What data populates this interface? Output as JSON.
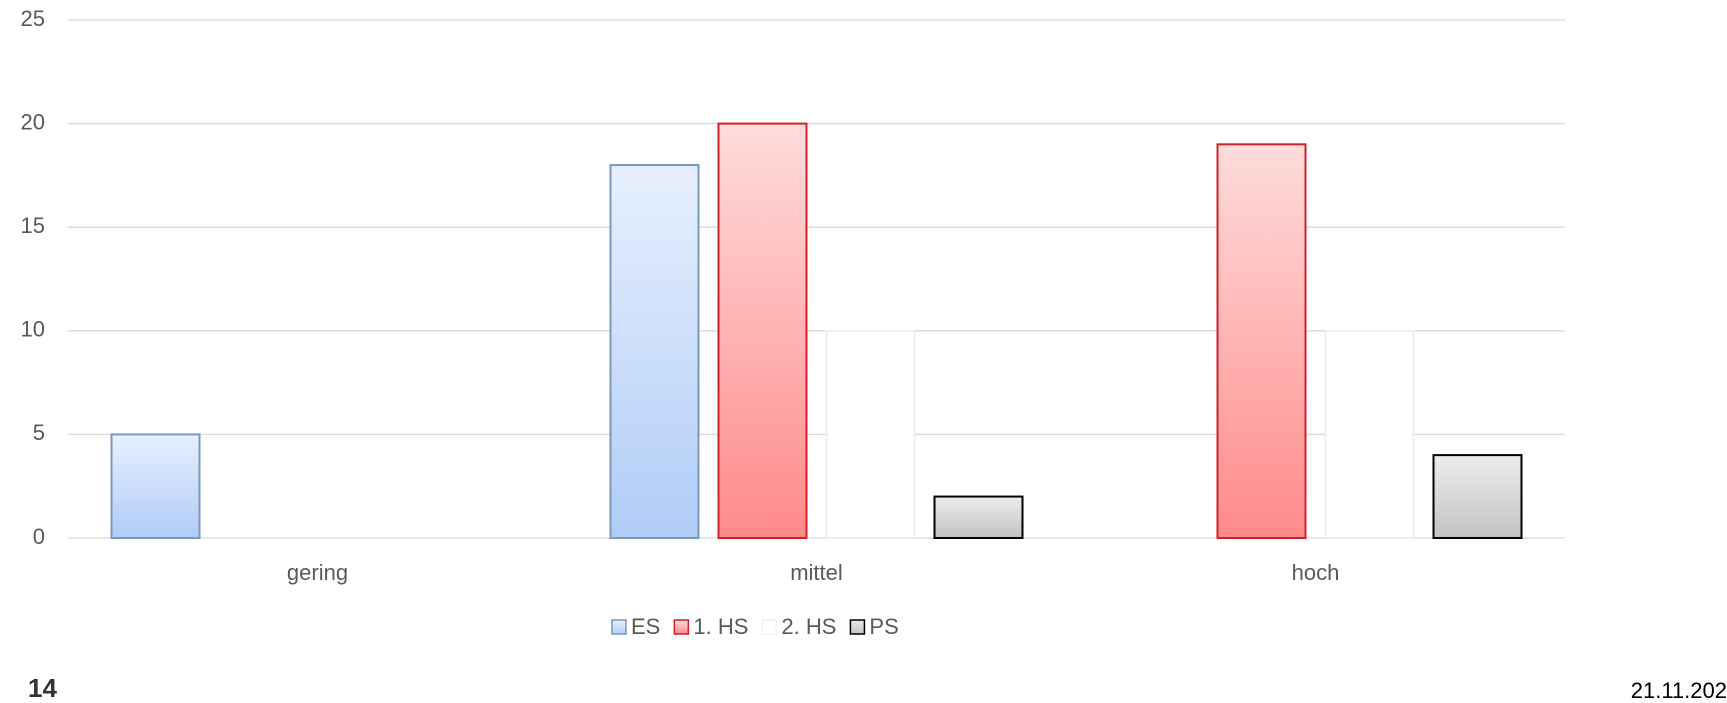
{
  "chart_data": {
    "type": "bar",
    "categories": [
      "gering",
      "mittel",
      "hoch"
    ],
    "series": [
      {
        "name": "ES",
        "color": "#b0ccf7",
        "edge_color": "#7a98bb",
        "values": [
          5,
          18,
          null
        ]
      },
      {
        "name": "1. HS",
        "color": "#ff8a8a",
        "edge_color": "#d0202a",
        "values": [
          null,
          20,
          19
        ]
      },
      {
        "name": "2. HS",
        "color": "#ffffff",
        "edge_color": "#eeeeee",
        "values": [
          null,
          10,
          10
        ]
      },
      {
        "name": "PS",
        "color": "#c2c2c2",
        "edge_color": "#000000",
        "values": [
          null,
          2,
          4
        ]
      }
    ],
    "ylim": [
      0,
      25
    ],
    "yticks": [
      0,
      5,
      10,
      15,
      20,
      25
    ],
    "grid": true,
    "legend": "bottom",
    "slide_number": "14",
    "date": "21.11.202"
  }
}
